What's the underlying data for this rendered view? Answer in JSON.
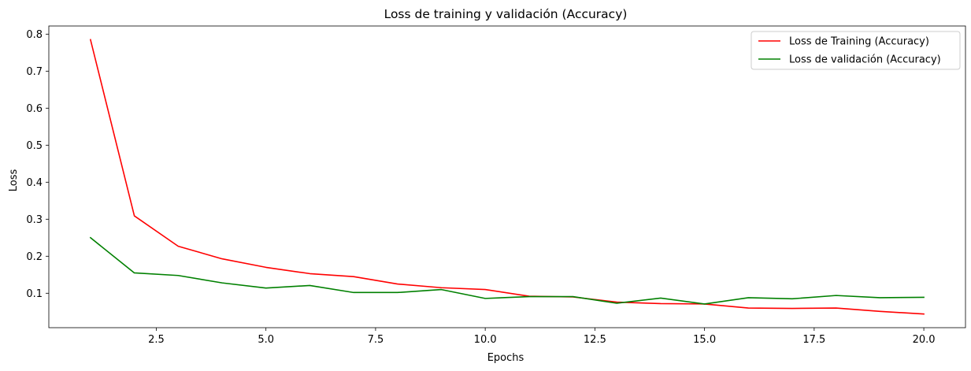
{
  "chart_data": {
    "type": "line",
    "title": "Loss de training y validación (Accuracy)",
    "xlabel": "Epochs",
    "ylabel": "Loss",
    "xlim": [
      0.05,
      20.95
    ],
    "ylim": [
      0.007,
      0.822
    ],
    "xticks": [
      2.5,
      5.0,
      7.5,
      10.0,
      12.5,
      15.0,
      17.5,
      20.0
    ],
    "xtick_labels": [
      "2.5",
      "5.0",
      "7.5",
      "10.0",
      "12.5",
      "15.0",
      "17.5",
      "20.0"
    ],
    "yticks": [
      0.1,
      0.2,
      0.3,
      0.4,
      0.5,
      0.6,
      0.7,
      0.8
    ],
    "ytick_labels": [
      "0.1",
      "0.2",
      "0.3",
      "0.4",
      "0.5",
      "0.6",
      "0.7",
      "0.8"
    ],
    "grid": false,
    "legend_position": "top-right",
    "x": [
      1,
      2,
      3,
      4,
      5,
      6,
      7,
      8,
      9,
      10,
      11,
      12,
      13,
      14,
      15,
      16,
      17,
      18,
      19,
      20
    ],
    "series": [
      {
        "name": "Loss de Training (Accuracy)",
        "color": "#ff0000",
        "values": [
          0.785,
          0.309,
          0.227,
          0.193,
          0.17,
          0.153,
          0.145,
          0.125,
          0.115,
          0.11,
          0.092,
          0.09,
          0.076,
          0.072,
          0.071,
          0.06,
          0.059,
          0.06,
          0.051,
          0.044
        ]
      },
      {
        "name": "Loss de validación (Accuracy)",
        "color": "#008000",
        "values": [
          0.25,
          0.155,
          0.148,
          0.128,
          0.114,
          0.121,
          0.102,
          0.102,
          0.11,
          0.086,
          0.091,
          0.091,
          0.073,
          0.087,
          0.071,
          0.088,
          0.085,
          0.094,
          0.088,
          0.089
        ]
      }
    ]
  }
}
